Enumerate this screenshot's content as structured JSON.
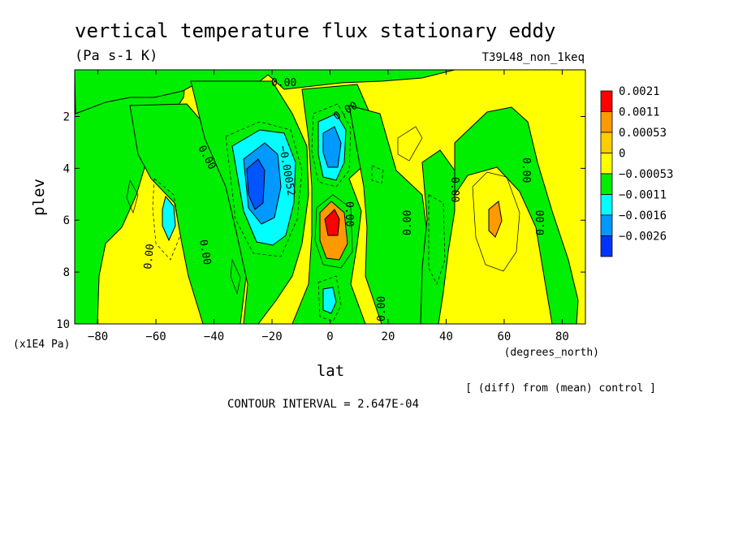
{
  "header": {
    "title": "vertical temperature flux stationary eddy",
    "units": "(Pa s-1 K)",
    "experiment": "T39L48_non_1keq"
  },
  "chart_data": {
    "type": "contour",
    "title": "vertical temperature flux stationary eddy",
    "units": "(Pa s-1 K)",
    "xlabel": "lat",
    "xunits": "(degrees_north)",
    "ylabel": "plev",
    "yunits": "(x1E4 Pa)",
    "xlim": [
      -88,
      88
    ],
    "ylim": [
      10,
      0.2
    ],
    "x_ticks": [
      -80,
      -60,
      -40,
      -20,
      0,
      20,
      40,
      60,
      80
    ],
    "x_tick_labels": [
      "−80",
      "−60",
      "−40",
      "−20",
      "0",
      "20",
      "40",
      "60",
      "80"
    ],
    "y_ticks": [
      2,
      4,
      6,
      8,
      10
    ],
    "y_tick_labels": [
      "2",
      "4",
      "6",
      "8",
      "10"
    ],
    "legend_levels": [
      "0.0021",
      "0.0011",
      "0.00053",
      "0",
      "−0.00053",
      "−0.0011",
      "−0.0016",
      "−0.0026"
    ],
    "legend_colors": [
      "#ff0000",
      "#ff9900",
      "#ffcc00",
      "#ffff00",
      "#00ee00",
      "#00ffff",
      "#0099ff",
      "#0033ff"
    ],
    "contour_labels": [
      "0.00",
      "0.00",
      "0.00",
      "0.00",
      "−0.00052",
      "0.00",
      "0.00",
      "0.00",
      "0.00",
      "0.00",
      "0.00",
      "0.00"
    ],
    "contour_interval_text": "CONTOUR INTERVAL = 2.647E-04",
    "diff_text": "[ (diff) from (mean) control ]",
    "grid": false,
    "legend_position": "right"
  }
}
